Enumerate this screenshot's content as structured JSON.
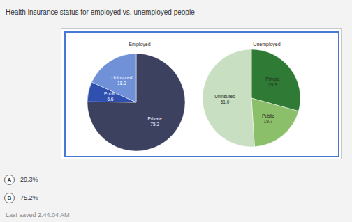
{
  "header": {
    "title": "Health insurance status for employed vs. unemployed people"
  },
  "chart_data": [
    {
      "type": "pie",
      "title": "Employed",
      "categories": [
        "Private",
        "Public",
        "Uninsured"
      ],
      "values": [
        75.2,
        6.6,
        18.2
      ],
      "value_labels": [
        "75.2",
        "6.6",
        "18.2"
      ],
      "colors": [
        "#3d4160",
        "#3050b0",
        "#7090d8"
      ],
      "data_labels": true
    },
    {
      "type": "pie",
      "title": "Unemployed",
      "categories": [
        "Private",
        "Public",
        "Uninsured"
      ],
      "values": [
        29.3,
        19.7,
        51.0
      ],
      "value_labels": [
        "29.3",
        "19.7",
        "51.0"
      ],
      "colors": [
        "#2f7a34",
        "#8cbf6a",
        "#c9dfc2"
      ],
      "data_labels": true
    }
  ],
  "options": [
    {
      "letter": "A",
      "text": "29.3%"
    },
    {
      "letter": "B",
      "text": "75.2%"
    }
  ],
  "footer": {
    "status": "Last saved 2:44:04 AM"
  }
}
